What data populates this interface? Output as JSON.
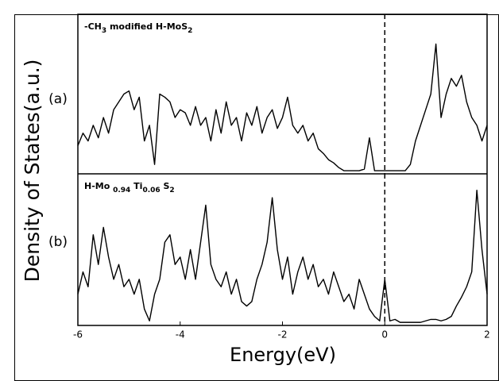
{
  "chart_data": [
    {
      "type": "line",
      "label": "(a)",
      "ylabel": "Density of States(a.u.)",
      "title": [
        {
          "text": "-CH"
        },
        {
          "text": "3",
          "sub": true
        },
        {
          "text": " modified H-MoS"
        },
        {
          "text": "2",
          "sub": true
        }
      ],
      "xlim": [
        -6,
        2
      ],
      "ylim": [
        0,
        1
      ],
      "vline": 0,
      "color": "#000000",
      "x": [
        -6.0,
        -5.9,
        -5.8,
        -5.7,
        -5.6,
        -5.5,
        -5.4,
        -5.3,
        -5.2,
        -5.1,
        -5.0,
        -4.9,
        -4.8,
        -4.7,
        -4.6,
        -4.5,
        -4.4,
        -4.3,
        -4.2,
        -4.1,
        -4.0,
        -3.9,
        -3.8,
        -3.7,
        -3.6,
        -3.5,
        -3.4,
        -3.3,
        -3.2,
        -3.1,
        -3.0,
        -2.9,
        -2.8,
        -2.7,
        -2.6,
        -2.5,
        -2.4,
        -2.3,
        -2.2,
        -2.1,
        -2.0,
        -1.9,
        -1.8,
        -1.7,
        -1.6,
        -1.5,
        -1.4,
        -1.3,
        -1.2,
        -1.1,
        -1.0,
        -0.9,
        -0.8,
        -0.7,
        -0.6,
        -0.5,
        -0.4,
        -0.3,
        -0.2,
        -0.1,
        0.0,
        0.1,
        0.2,
        0.3,
        0.4,
        0.5,
        0.6,
        0.7,
        0.8,
        0.9,
        1.0,
        1.1,
        1.2,
        1.3,
        1.4,
        1.5,
        1.6,
        1.7,
        1.8,
        1.9,
        2.0
      ],
      "values": [
        0.17,
        0.25,
        0.2,
        0.3,
        0.22,
        0.35,
        0.25,
        0.4,
        0.45,
        0.5,
        0.52,
        0.4,
        0.48,
        0.2,
        0.3,
        0.05,
        0.5,
        0.48,
        0.45,
        0.35,
        0.4,
        0.38,
        0.3,
        0.42,
        0.3,
        0.35,
        0.2,
        0.4,
        0.25,
        0.45,
        0.3,
        0.35,
        0.2,
        0.38,
        0.3,
        0.42,
        0.25,
        0.35,
        0.4,
        0.28,
        0.35,
        0.48,
        0.3,
        0.25,
        0.3,
        0.2,
        0.25,
        0.15,
        0.12,
        0.08,
        0.06,
        0.03,
        0.01,
        0.01,
        0.01,
        0.01,
        0.02,
        0.22,
        0.01,
        0.01,
        0.01,
        0.01,
        0.01,
        0.01,
        0.01,
        0.05,
        0.2,
        0.3,
        0.4,
        0.5,
        0.82,
        0.35,
        0.5,
        0.6,
        0.55,
        0.62,
        0.45,
        0.35,
        0.3,
        0.2,
        0.3
      ]
    },
    {
      "type": "line",
      "label": "(b)",
      "xlabel": "Energy(eV)",
      "title": [
        {
          "text": "H-Mo "
        },
        {
          "text": "0.94",
          "sub": true
        },
        {
          "text": " Ti"
        },
        {
          "text": "0.06",
          "sub": true
        },
        {
          "text": "  S"
        },
        {
          "text": "2",
          "sub": true
        }
      ],
      "xlim": [
        -6,
        2
      ],
      "ylim": [
        0,
        1
      ],
      "xticks": [
        -6,
        -4,
        -2,
        0,
        2
      ],
      "vline": 0,
      "color": "#000000",
      "x": [
        -6.0,
        -5.9,
        -5.8,
        -5.7,
        -5.6,
        -5.5,
        -5.4,
        -5.3,
        -5.2,
        -5.1,
        -5.0,
        -4.9,
        -4.8,
        -4.7,
        -4.6,
        -4.5,
        -4.4,
        -4.3,
        -4.2,
        -4.1,
        -4.0,
        -3.9,
        -3.8,
        -3.7,
        -3.6,
        -3.5,
        -3.4,
        -3.3,
        -3.2,
        -3.1,
        -3.0,
        -2.9,
        -2.8,
        -2.7,
        -2.6,
        -2.5,
        -2.4,
        -2.3,
        -2.2,
        -2.1,
        -2.0,
        -1.9,
        -1.8,
        -1.7,
        -1.6,
        -1.5,
        -1.4,
        -1.3,
        -1.2,
        -1.1,
        -1.0,
        -0.9,
        -0.8,
        -0.7,
        -0.6,
        -0.5,
        -0.4,
        -0.3,
        -0.2,
        -0.1,
        0.0,
        0.1,
        0.2,
        0.3,
        0.4,
        0.5,
        0.6,
        0.7,
        0.8,
        0.9,
        1.0,
        1.1,
        1.2,
        1.3,
        1.4,
        1.5,
        1.6,
        1.7,
        1.8,
        1.9,
        2.0
      ],
      "values": [
        0.2,
        0.35,
        0.25,
        0.6,
        0.4,
        0.65,
        0.45,
        0.3,
        0.4,
        0.25,
        0.3,
        0.2,
        0.3,
        0.1,
        0.02,
        0.2,
        0.3,
        0.55,
        0.6,
        0.4,
        0.45,
        0.3,
        0.5,
        0.3,
        0.55,
        0.8,
        0.4,
        0.3,
        0.25,
        0.35,
        0.2,
        0.3,
        0.15,
        0.12,
        0.15,
        0.3,
        0.4,
        0.55,
        0.85,
        0.5,
        0.3,
        0.45,
        0.2,
        0.35,
        0.45,
        0.3,
        0.4,
        0.25,
        0.3,
        0.2,
        0.35,
        0.25,
        0.15,
        0.2,
        0.1,
        0.3,
        0.2,
        0.1,
        0.05,
        0.02,
        0.3,
        0.02,
        0.03,
        0.01,
        0.01,
        0.01,
        0.01,
        0.01,
        0.02,
        0.03,
        0.03,
        0.02,
        0.03,
        0.05,
        0.12,
        0.18,
        0.25,
        0.35,
        0.9,
        0.5,
        0.2
      ]
    }
  ]
}
